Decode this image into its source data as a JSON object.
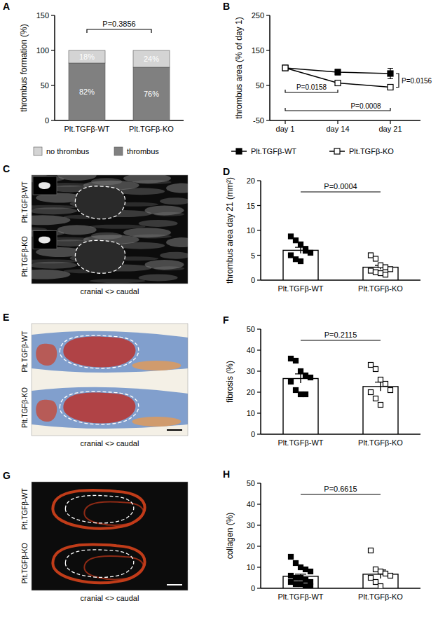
{
  "chart_data": [
    {
      "panel": "A",
      "type": "bar",
      "stacked": true,
      "data_labels": true,
      "legend": "bottom",
      "y_label": "thrombus formation (%)",
      "categories": [
        "Plt.TGFβ-WT",
        "Plt.TGFβ-KO"
      ],
      "series": [
        {
          "name": "thrombus",
          "color": "#808080",
          "values": [
            82,
            76
          ],
          "value_labels": [
            "82%",
            "76%"
          ]
        },
        {
          "name": "no thrombus",
          "color": "#d4d4d4",
          "values": [
            18,
            24
          ],
          "value_labels": [
            "18%",
            "24%"
          ]
        }
      ],
      "ylim": [
        0,
        150
      ],
      "yticks": [
        0,
        50,
        100,
        150
      ],
      "annotations": [
        "P=0.3856"
      ]
    },
    {
      "panel": "B",
      "type": "line",
      "legend": "bottom",
      "y_label": "thrombus area (% of day 1)",
      "categories": [
        "day 1",
        "day 14",
        "day 21"
      ],
      "series": [
        {
          "name": "Plt.TGFβ-WT",
          "color": "#000000",
          "marker": "filled-square",
          "values": [
            100,
            88,
            84
          ],
          "errors": [
            0,
            8,
            15
          ]
        },
        {
          "name": "Plt.TGFβ-KO",
          "color": "#000000",
          "marker": "open-square",
          "values": [
            100,
            57,
            45
          ],
          "errors": [
            0,
            3,
            4
          ]
        }
      ],
      "ylim": [
        -50,
        250
      ],
      "yticks": [
        -50,
        50,
        150,
        250
      ],
      "annotations": [
        "P=0.0158",
        "P=0.0008",
        "P=0.0156"
      ]
    },
    {
      "panel": "D",
      "type": "bar",
      "marker": "square",
      "color": "#ffffff",
      "y_label": "thrombus area day 21 (mm²)",
      "categories": [
        "Plt.TGFβ-WT",
        "Plt.TGFβ-KO"
      ],
      "values": [
        6.0,
        2.6
      ],
      "errors": [
        0.6,
        0.4
      ],
      "points": [
        [
          8.8,
          8.0,
          7.2,
          6.3,
          5.5,
          5.0,
          4.2,
          3.8,
          5.9
        ],
        [
          5.0,
          4.3,
          3.0,
          2.6,
          2.2,
          1.9,
          1.6,
          1.4,
          1.1
        ]
      ],
      "ylim": [
        0,
        20
      ],
      "yticks": [
        0,
        5,
        10,
        15,
        20
      ],
      "annotations": [
        "P=0.0004"
      ]
    },
    {
      "panel": "F",
      "type": "bar",
      "marker": "square",
      "color": "#ffffff",
      "y_label": "fibrosis (%)",
      "categories": [
        "Plt.TGFβ-WT",
        "Plt.TGFβ-KO"
      ],
      "values": [
        26.5,
        22.7
      ],
      "errors": [
        2.2,
        2.1
      ],
      "points": [
        [
          36,
          35,
          30,
          28,
          27,
          25,
          21,
          19,
          19
        ],
        [
          33,
          31,
          26,
          24,
          21,
          20,
          17,
          14
        ]
      ],
      "ylim": [
        0,
        50
      ],
      "yticks": [
        0,
        10,
        20,
        30,
        40,
        50
      ],
      "annotations": [
        "P=0.2115"
      ]
    },
    {
      "panel": "H",
      "type": "bar",
      "marker": "square",
      "color": "#ffffff",
      "y_label": "collagen (%)",
      "categories": [
        "Plt.TGFβ-WT",
        "Plt.TGFβ-KO"
      ],
      "values": [
        5.7,
        6.7
      ],
      "errors": [
        1.0,
        2.0
      ],
      "points": [
        [
          15,
          12,
          10,
          9,
          8,
          6,
          5,
          5,
          4,
          3,
          3,
          2,
          2,
          1,
          1
        ],
        [
          18,
          9,
          8,
          7,
          6,
          5,
          3,
          1
        ]
      ],
      "ylim": [
        0,
        50
      ],
      "yticks": [
        0,
        10,
        20,
        30,
        40,
        50
      ],
      "annotations": [
        "P=0.6615"
      ]
    }
  ],
  "images": [
    {
      "panel": "C",
      "rows": [
        "Plt.TGFβ-WT",
        "Plt.TGFβ-KO"
      ],
      "caption": "cranial <> caudal"
    },
    {
      "panel": "E",
      "rows": [
        "Plt.TGFβ-WT",
        "Plt.TGFβ-KO"
      ],
      "caption": "cranial <> caudal"
    },
    {
      "panel": "G",
      "rows": [
        "Plt.TGFβ-WT",
        "Plt.TGFβ-KO"
      ],
      "caption": "cranial <> caudal"
    }
  ]
}
